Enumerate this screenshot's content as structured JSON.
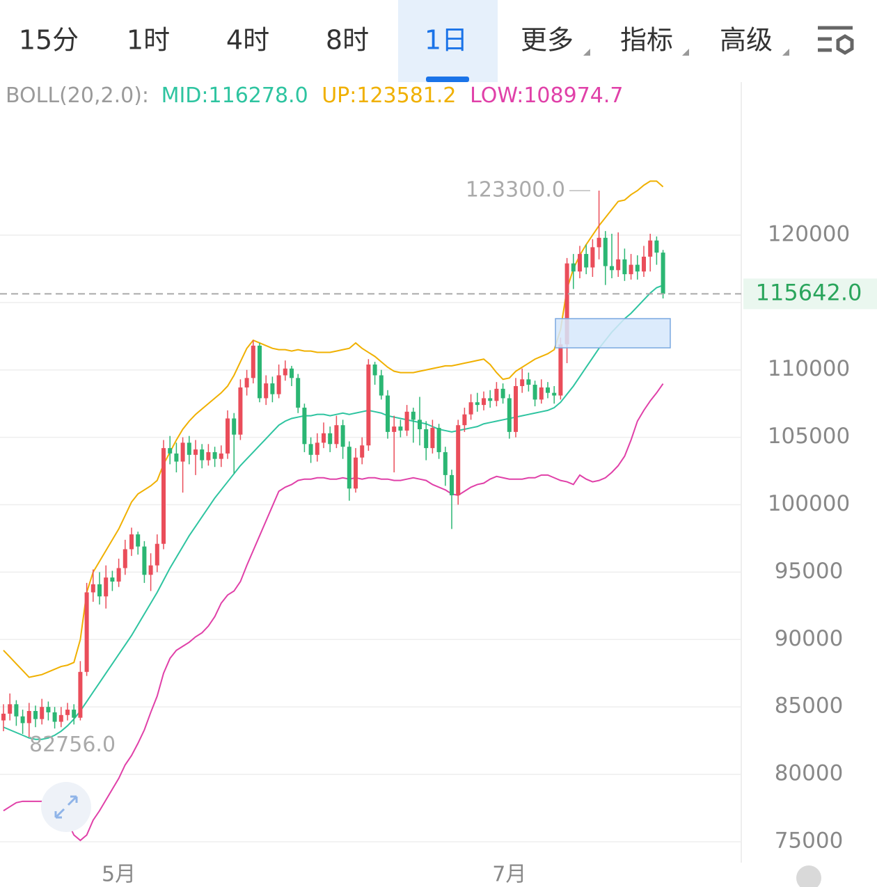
{
  "tabs": {
    "items": [
      "15分",
      "1时",
      "4时",
      "8时",
      "1日",
      "更多",
      "指标",
      "高级"
    ],
    "active_index": 4
  },
  "indicator": {
    "name": "BOLL(20,2.0):",
    "mid": "MID:116278.0",
    "up": "UP:123581.2",
    "low": "LOW:108974.7"
  },
  "chart_data": {
    "type": "candlestick",
    "categories": [
      null,
      null,
      null,
      null,
      null,
      null,
      null,
      null,
      null,
      null,
      null,
      null,
      null,
      null,
      null,
      null,
      null,
      null,
      "5月",
      null,
      null,
      null,
      null,
      null,
      null,
      null,
      null,
      null,
      null,
      null,
      null,
      null,
      null,
      null,
      null,
      null,
      null,
      null,
      null,
      null,
      null,
      null,
      null,
      null,
      null,
      null,
      null,
      null,
      null,
      null,
      null,
      null,
      null,
      null,
      null,
      null,
      null,
      null,
      null,
      null,
      null,
      null,
      null,
      null,
      null,
      null,
      null,
      null,
      null,
      null,
      null,
      null,
      null,
      null,
      null,
      null,
      null,
      null,
      null,
      "7月",
      null,
      null,
      null,
      null,
      null,
      null,
      null,
      null,
      null,
      null,
      null,
      null,
      null,
      null,
      null,
      null,
      null,
      null,
      null,
      null,
      null,
      null,
      null,
      null
    ],
    "open": [
      84000,
      84500,
      85200,
      84300,
      83800,
      84700,
      84100,
      85000,
      84600,
      83900,
      84400,
      84800,
      84200,
      87600,
      93500,
      94100,
      93200,
      94600,
      94300,
      95300,
      96700,
      97800,
      96900,
      94800,
      95500,
      97100,
      104200,
      103800,
      103200,
      104600,
      103700,
      104100,
      103300,
      103900,
      103400,
      103800,
      106400,
      105200,
      108700,
      109400,
      111800,
      107900,
      109000,
      108200,
      109600,
      110100,
      109400,
      107200,
      104500,
      103700,
      104600,
      105300,
      104500,
      105900,
      104300,
      101200,
      103500,
      104400,
      110400,
      109600,
      108100,
      105400,
      105800,
      105500,
      106900,
      106300,
      105600,
      104200,
      105700,
      103900,
      102200,
      100700,
      105900,
      106700,
      107600,
      107400,
      107900,
      107700,
      108600,
      107900,
      105400,
      108800,
      109300,
      108900,
      107800,
      108700,
      108300,
      108100,
      111900,
      117900,
      117300,
      118600,
      117600,
      119100,
      119800,
      117700,
      117400,
      118200,
      117100,
      117800,
      117300,
      118400,
      119600,
      118700
    ],
    "high": [
      85200,
      86000,
      85500,
      84800,
      85300,
      85100,
      85600,
      85400,
      85000,
      85000,
      85300,
      85200,
      88400,
      94200,
      95200,
      95000,
      95500,
      95100,
      96000,
      97400,
      98300,
      98000,
      97300,
      96400,
      97800,
      104800,
      105100,
      104600,
      105000,
      105100,
      104800,
      104500,
      104500,
      104300,
      104400,
      107000,
      106800,
      109300,
      110000,
      112200,
      112000,
      109600,
      109500,
      110400,
      110700,
      110300,
      109700,
      107500,
      105000,
      105300,
      106100,
      105800,
      106600,
      106300,
      104700,
      104200,
      105000,
      110800,
      110600,
      110000,
      108500,
      106600,
      106300,
      107400,
      107200,
      108000,
      106200,
      106300,
      106000,
      104300,
      102600,
      106300,
      107200,
      108200,
      108300,
      108400,
      108500,
      109100,
      109000,
      108200,
      109400,
      110100,
      109800,
      109200,
      109300,
      109100,
      108800,
      112400,
      118300,
      118600,
      119200,
      119300,
      119700,
      123300,
      120300,
      120100,
      120200,
      119000,
      118600,
      118500,
      119200,
      120100,
      119900,
      118900
    ],
    "low": [
      83200,
      84000,
      83600,
      83000,
      82756,
      83500,
      83700,
      84000,
      83400,
      83500,
      84000,
      83700,
      84000,
      87300,
      92800,
      92600,
      92300,
      93600,
      93900,
      94800,
      96200,
      96300,
      94200,
      93600,
      95000,
      96700,
      103000,
      102400,
      100900,
      103000,
      102200,
      102700,
      102900,
      102800,
      102800,
      103400,
      102300,
      104800,
      108100,
      109000,
      107600,
      107400,
      107600,
      107900,
      109200,
      108800,
      106800,
      103900,
      103100,
      103200,
      104200,
      103900,
      104200,
      103400,
      100300,
      100900,
      103000,
      104000,
      108900,
      107800,
      104900,
      102400,
      105000,
      105100,
      104600,
      104400,
      103300,
      103800,
      103400,
      101400,
      98200,
      100000,
      105400,
      106300,
      106900,
      107000,
      107200,
      107300,
      107500,
      104900,
      105000,
      108300,
      108400,
      107300,
      107500,
      107900,
      107500,
      107800,
      110500,
      116000,
      116800,
      117100,
      116900,
      118200,
      116300,
      116800,
      116900,
      116600,
      116700,
      116700,
      116900,
      117300,
      117800,
      115300
    ],
    "close": [
      84500,
      85200,
      84300,
      83800,
      84700,
      84100,
      85000,
      84600,
      83900,
      84400,
      84800,
      84200,
      87600,
      93500,
      94100,
      93200,
      94600,
      94300,
      95300,
      96700,
      97800,
      96900,
      94800,
      95500,
      97100,
      104200,
      103800,
      103200,
      104600,
      103700,
      104100,
      103300,
      103900,
      103400,
      103800,
      106400,
      105200,
      108700,
      109400,
      111800,
      107900,
      109000,
      108200,
      109600,
      110100,
      109400,
      107200,
      104500,
      103700,
      104600,
      105300,
      104500,
      105900,
      104300,
      101200,
      103500,
      104400,
      110400,
      109600,
      108100,
      105400,
      105800,
      105500,
      106900,
      106300,
      105600,
      104200,
      105700,
      103900,
      102200,
      100700,
      105900,
      106700,
      107600,
      107400,
      107900,
      107700,
      108600,
      107900,
      105400,
      108800,
      109300,
      108900,
      107800,
      108700,
      108300,
      108100,
      111900,
      117900,
      117300,
      118600,
      117600,
      119100,
      119800,
      117700,
      117400,
      118200,
      117100,
      117800,
      117300,
      118400,
      119600,
      118700,
      115642
    ],
    "up_color": "#ea4d5a",
    "down_color": "#2bb673",
    "bands": [
      {
        "color": "#f0b000",
        "values": [
          89200,
          88700,
          88200,
          87700,
          87200,
          87300,
          87400,
          87600,
          87800,
          88000,
          88100,
          88300,
          90000,
          93500,
          95000,
          95800,
          96600,
          97400,
          98200,
          99200,
          100200,
          100800,
          101100,
          101400,
          101800,
          103000,
          103900,
          104800,
          105600,
          106200,
          106700,
          107100,
          107500,
          107900,
          108300,
          108800,
          109600,
          110600,
          111600,
          112200,
          112000,
          111800,
          111600,
          111500,
          111500,
          111400,
          111500,
          111400,
          111400,
          111300,
          111300,
          111300,
          111400,
          111500,
          111600,
          112000,
          111600,
          111300,
          111000,
          110600,
          110200,
          109900,
          109800,
          109800,
          109800,
          109900,
          110000,
          110100,
          110200,
          110300,
          110300,
          110400,
          110500,
          110600,
          110700,
          110800,
          110400,
          109800,
          109300,
          109400,
          109900,
          110200,
          110500,
          110800,
          111000,
          111200,
          111500,
          113000,
          116000,
          117500,
          118500,
          119300,
          120000,
          120700,
          121300,
          121900,
          122500,
          122600,
          123000,
          123300,
          123700,
          124000,
          124000,
          123581.2
        ]
      },
      {
        "color": "#2ec4a0",
        "values": [
          83500,
          83300,
          83100,
          82900,
          82700,
          82600,
          82600,
          82700,
          82900,
          83200,
          83600,
          84100,
          84700,
          85400,
          86100,
          86800,
          87500,
          88200,
          88900,
          89600,
          90300,
          91100,
          91900,
          92700,
          93500,
          94400,
          95300,
          96100,
          96900,
          97700,
          98400,
          99100,
          99800,
          100500,
          101100,
          101700,
          102300,
          102900,
          103400,
          103900,
          104400,
          104900,
          105400,
          105900,
          106200,
          106400,
          106500,
          106600,
          106600,
          106700,
          106700,
          106600,
          106700,
          106800,
          106700,
          106800,
          106900,
          107000,
          106900,
          106800,
          106600,
          106500,
          106400,
          106300,
          106200,
          106100,
          106000,
          105800,
          105600,
          105500,
          105400,
          105500,
          105600,
          105700,
          105800,
          106000,
          106100,
          106200,
          106300,
          106400,
          106500,
          106600,
          106700,
          106800,
          106900,
          107000,
          107200,
          107600,
          108200,
          108800,
          109500,
          110200,
          110900,
          111600,
          112200,
          112800,
          113300,
          113800,
          114200,
          114700,
          115200,
          115700,
          116100,
          116278.0
        ]
      },
      {
        "color": "#e040a8",
        "values": [
          77300,
          77600,
          77900,
          78000,
          78000,
          78000,
          78000,
          77900,
          77800,
          77400,
          76500,
          75500,
          75100,
          75500,
          76600,
          77300,
          78100,
          78900,
          79700,
          80700,
          81400,
          82300,
          83300,
          84600,
          85800,
          87500,
          88600,
          89200,
          89500,
          89800,
          90200,
          90500,
          91000,
          91700,
          92700,
          93300,
          93600,
          94300,
          95500,
          96600,
          97700,
          98800,
          99900,
          101000,
          101300,
          101500,
          101800,
          101900,
          101900,
          102000,
          102000,
          101900,
          101900,
          102000,
          101900,
          102000,
          101900,
          102000,
          102000,
          101900,
          101900,
          101800,
          101800,
          101900,
          102000,
          101900,
          101800,
          101500,
          101300,
          101100,
          100800,
          100700,
          101000,
          101300,
          101500,
          101600,
          101900,
          102100,
          102000,
          101900,
          101900,
          101900,
          102000,
          102000,
          102200,
          102200,
          102000,
          101800,
          101700,
          101500,
          102200,
          101900,
          101700,
          101800,
          102000,
          102400,
          102900,
          103600,
          104800,
          106200,
          107000,
          107700,
          108300,
          108974.7
        ]
      }
    ],
    "ylim": [
      73450,
      131350
    ],
    "yticks": [
      75000,
      80000,
      85000,
      90000,
      95000,
      100000,
      105000,
      110000,
      115000,
      120000
    ],
    "grid": true,
    "current_price": {
      "value": 115642,
      "label": "115642.0"
    },
    "annotations": [
      {
        "value": 123300,
        "label": "123300.0"
      },
      {
        "value": 82756,
        "label": "82756.0"
      }
    ]
  }
}
